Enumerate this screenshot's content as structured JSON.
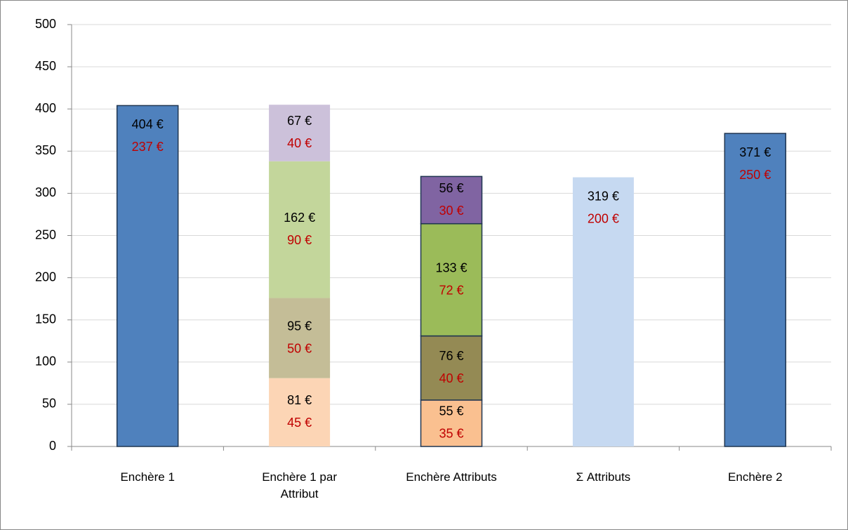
{
  "chart_data": {
    "type": "stacked-bar",
    "categories": [
      "Enchère 1",
      "Enchère 1 par Attribut",
      "Enchère Attributs",
      "Σ Attributs",
      "Enchère 2"
    ],
    "outlined": [
      true,
      false,
      true,
      false,
      true
    ],
    "series": [
      {
        "colors": [
          "#4f81bd",
          "#fcd5b5",
          "#fac090",
          "#c6d9f1",
          "#4f81bd"
        ],
        "values": [
          404,
          81,
          55,
          319,
          371
        ],
        "value_labels": [
          "404 €",
          "81 €",
          "55 €",
          "319 €",
          "371 €"
        ],
        "second_labels": [
          "237 €",
          "45 €",
          "35 €",
          "200 €",
          "250 €"
        ]
      },
      {
        "colors": [
          null,
          "#c4bd97",
          "#948a54",
          null,
          null
        ],
        "values": [
          null,
          95,
          76,
          null,
          null
        ],
        "value_labels": [
          null,
          "95 €",
          "76 €",
          null,
          null
        ],
        "second_labels": [
          null,
          "50 €",
          "40 €",
          null,
          null
        ]
      },
      {
        "colors": [
          null,
          "#c3d69b",
          "#9bbb59",
          null,
          null
        ],
        "values": [
          null,
          162,
          133,
          null,
          null
        ],
        "value_labels": [
          null,
          "162 €",
          "133 €",
          null,
          null
        ],
        "second_labels": [
          null,
          "90 €",
          "72 €",
          null,
          null
        ]
      },
      {
        "colors": [
          null,
          "#ccc1da",
          "#8064a2",
          null,
          null
        ],
        "values": [
          null,
          67,
          56,
          null,
          null
        ],
        "value_labels": [
          null,
          "67 €",
          "56 €",
          null,
          null
        ],
        "second_labels": [
          null,
          "40 €",
          "30 €",
          null,
          null
        ]
      }
    ],
    "ylim": [
      0,
      500
    ],
    "yticks": [
      0,
      50,
      100,
      150,
      200,
      250,
      300,
      350,
      400,
      450,
      500
    ],
    "grid": true,
    "label_color": "#000000",
    "second_label_color": "#c00000"
  }
}
